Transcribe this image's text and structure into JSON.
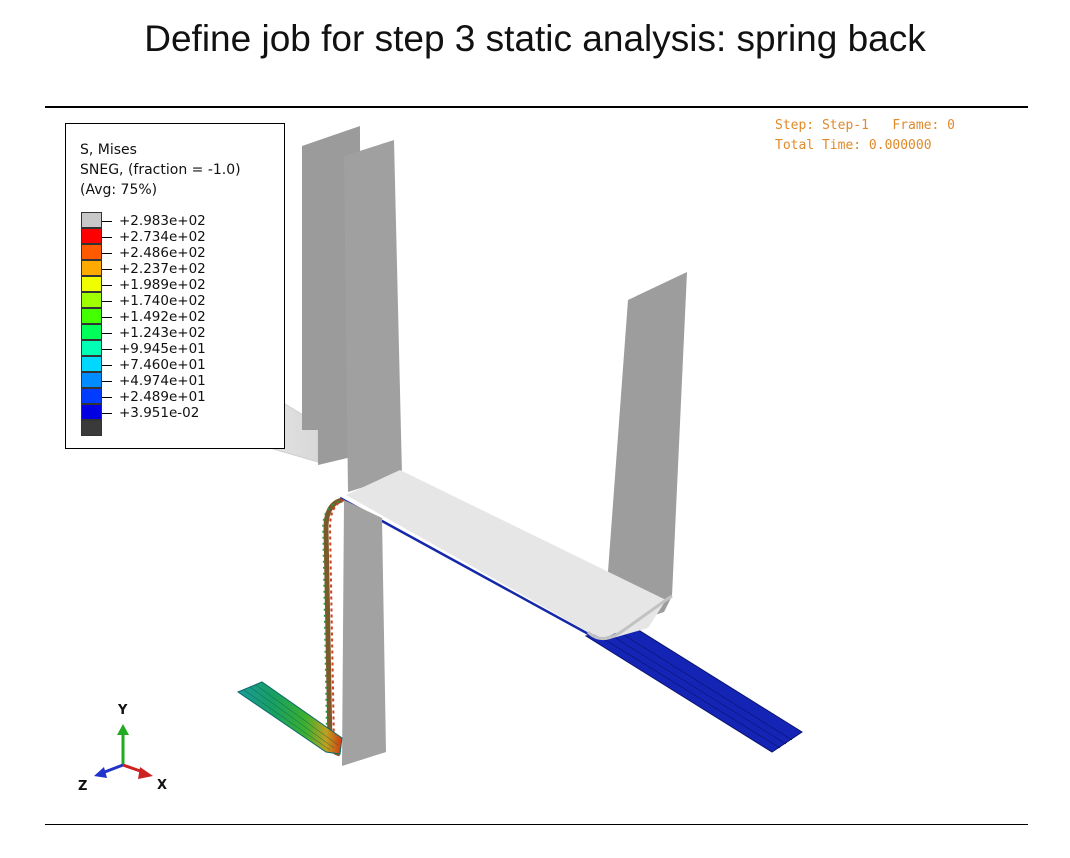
{
  "slide": {
    "title": "Define job for step 3 static analysis: spring back"
  },
  "legend": {
    "variable": "S, Mises",
    "section": "SNEG, (fraction = -1.0)",
    "averaging": "(Avg: 75%)",
    "entries": [
      {
        "value": "+2.983e+02",
        "color": "#c8c8c8"
      },
      {
        "value": "+2.734e+02",
        "color": "#ff0000"
      },
      {
        "value": "+2.486e+02",
        "color": "#ff5a00"
      },
      {
        "value": "+2.237e+02",
        "color": "#ffaa00"
      },
      {
        "value": "+1.989e+02",
        "color": "#f0ff00"
      },
      {
        "value": "+1.740e+02",
        "color": "#a0ff00"
      },
      {
        "value": "+1.492e+02",
        "color": "#44ff00"
      },
      {
        "value": "+1.243e+02",
        "color": "#00ff58"
      },
      {
        "value": "+9.945e+01",
        "color": "#00ffb4"
      },
      {
        "value": "+7.460e+01",
        "color": "#00d8ff"
      },
      {
        "value": "+4.974e+01",
        "color": "#008cff"
      },
      {
        "value": "+2.489e+01",
        "color": "#003cff"
      },
      {
        "value": "+3.951e-02",
        "color": "#0000e0"
      }
    ],
    "bottom_color": "#3a3a3a"
  },
  "status": {
    "line1": "Step: Step-1   Frame: 0",
    "line2": "Total Time: 0.000000"
  },
  "triad": {
    "y": "Y",
    "z": "Z",
    "x": "X",
    "y_color": "#22aa22",
    "z_color": "#2233cc",
    "x_color": "#cc2222"
  },
  "colors": {
    "part_gray": "#9c9c9c",
    "part_light": "#e6e6e6",
    "plate_blue": "#1020b8"
  }
}
